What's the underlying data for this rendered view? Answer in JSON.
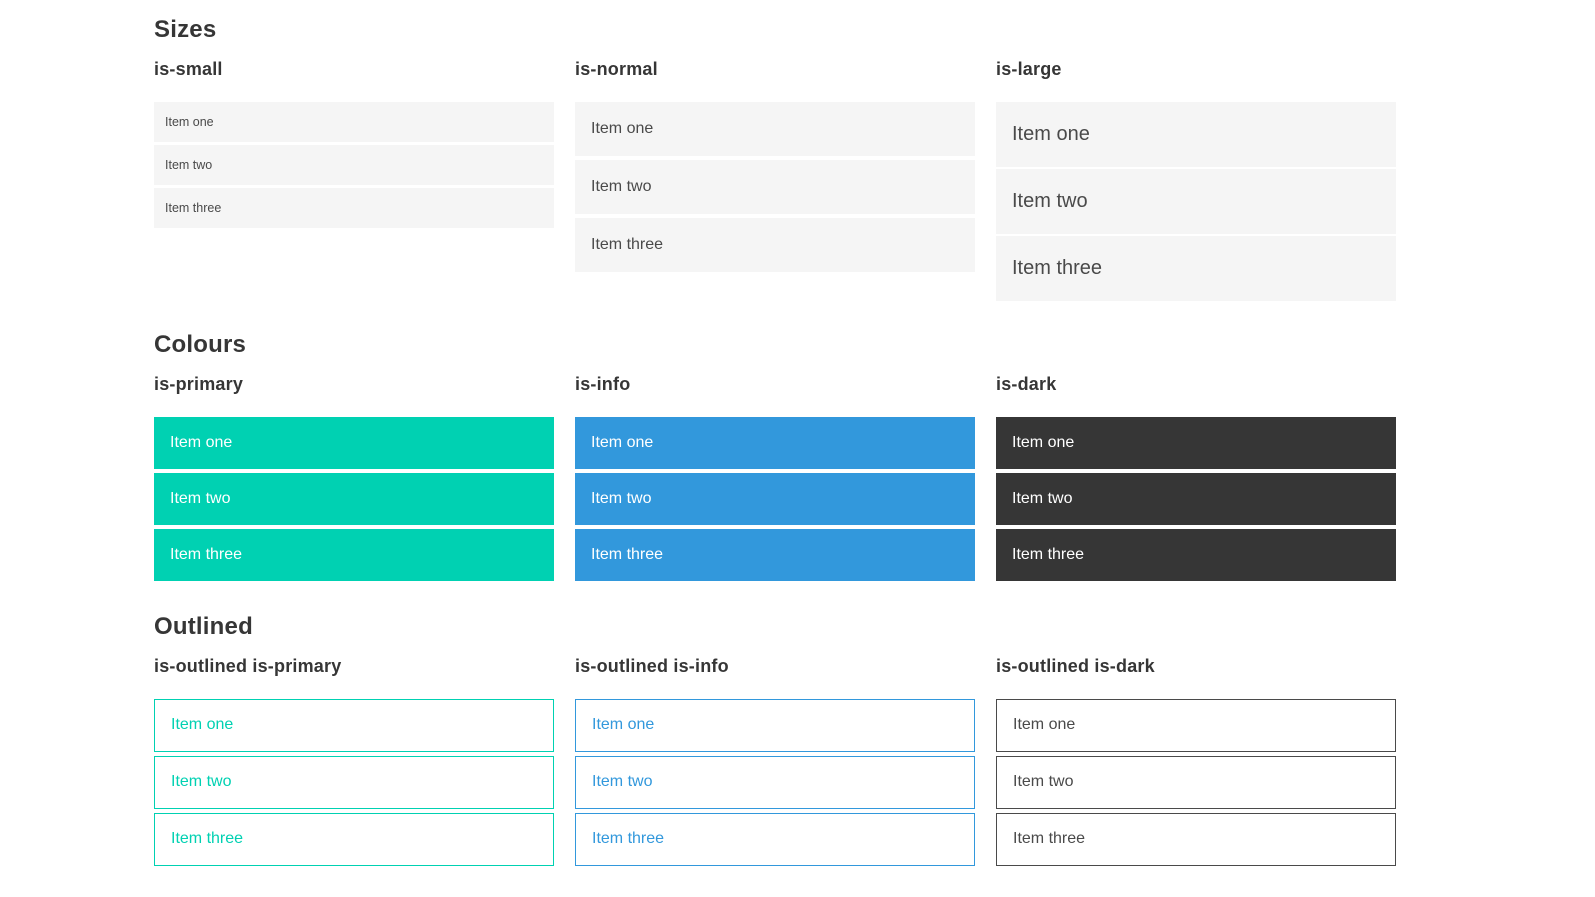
{
  "colors": {
    "primary": "#00d1b2",
    "info": "#3298dc",
    "dark": "#363636",
    "item_background": "#f5f5f5",
    "item_text": "#4a4a4a",
    "heading_text": "#363636",
    "on_color_text": "#ffffff"
  },
  "sections": [
    {
      "title": "Sizes",
      "groups": [
        {
          "label": "is-small",
          "variant": "size-small",
          "items": [
            "Item one",
            "Item two",
            "Item three"
          ]
        },
        {
          "label": "is-normal",
          "variant": "size-normal",
          "items": [
            "Item one",
            "Item two",
            "Item three"
          ]
        },
        {
          "label": "is-large",
          "variant": "size-large",
          "items": [
            "Item one",
            "Item two",
            "Item three"
          ]
        }
      ]
    },
    {
      "title": "Colours",
      "groups": [
        {
          "label": "is-primary",
          "variant": "color-primary",
          "items": [
            "Item one",
            "Item two",
            "Item three"
          ]
        },
        {
          "label": "is-info",
          "variant": "color-info",
          "items": [
            "Item one",
            "Item two",
            "Item three"
          ]
        },
        {
          "label": "is-dark",
          "variant": "color-dark",
          "items": [
            "Item one",
            "Item two",
            "Item three"
          ]
        }
      ]
    },
    {
      "title": "Outlined",
      "groups": [
        {
          "label": "is-outlined is-primary",
          "variant": "outlined-primary",
          "items": [
            "Item one",
            "Item two",
            "Item three"
          ]
        },
        {
          "label": "is-outlined is-info",
          "variant": "outlined-info",
          "items": [
            "Item one",
            "Item two",
            "Item three"
          ]
        },
        {
          "label": "is-outlined is-dark",
          "variant": "outlined-dark",
          "items": [
            "Item one",
            "Item two",
            "Item three"
          ]
        }
      ]
    }
  ]
}
